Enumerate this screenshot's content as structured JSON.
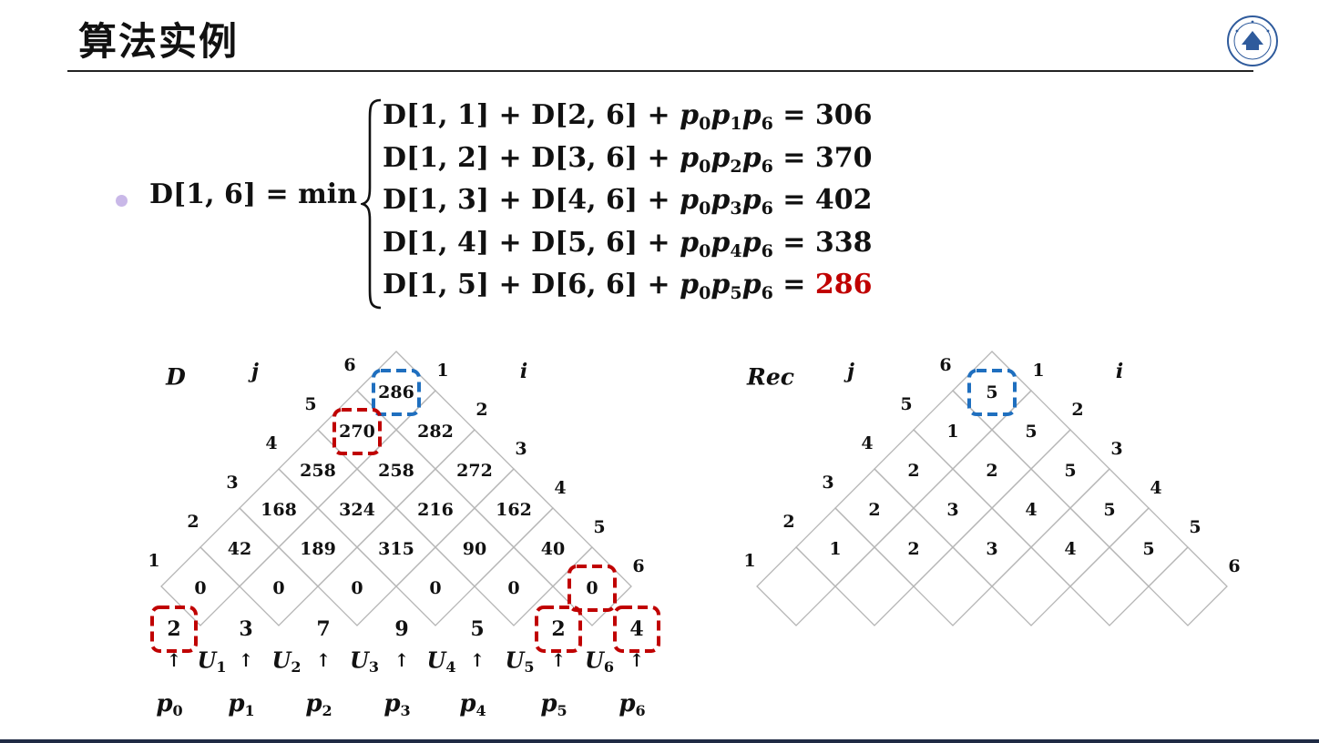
{
  "slide": {
    "title": "算法实例"
  },
  "formula": {
    "lhs": "D[1, 6] = min",
    "cases": [
      {
        "left": "D[1, 1] + D[2, 6] + ",
        "k": "1",
        "value": "306",
        "highlight": false
      },
      {
        "left": "D[1, 2] + D[3, 6] + ",
        "k": "2",
        "value": "370",
        "highlight": false
      },
      {
        "left": "D[1, 3] + D[4, 6] + ",
        "k": "3",
        "value": "402",
        "highlight": false
      },
      {
        "left": "D[1, 4] + D[5, 6] + ",
        "k": "4",
        "value": "338",
        "highlight": false
      },
      {
        "left": "D[1, 5] + D[6, 6] + ",
        "k": "5",
        "value": "286",
        "highlight": true
      }
    ]
  },
  "colors": {
    "red_dashed": "#c00000",
    "blue_dashed": "#1f6fbf",
    "grid_line": "#b5b5b5",
    "bullet": "#c9b8e8"
  },
  "d_table": {
    "label": "D",
    "j_label": "j",
    "i_label": "i",
    "left_indices": [
      "1",
      "2",
      "3",
      "4",
      "5",
      "6"
    ],
    "right_indices": [
      "1",
      "2",
      "3",
      "4",
      "5",
      "6"
    ],
    "rows": [
      [
        "0",
        "0",
        "0",
        "0",
        "0",
        "0"
      ],
      [
        "42",
        "189",
        "315",
        "90",
        "40"
      ],
      [
        "168",
        "324",
        "216",
        "162"
      ],
      [
        "258",
        "258",
        "272"
      ],
      [
        "270",
        "282"
      ],
      [
        "286"
      ]
    ],
    "dims": [
      "2",
      "3",
      "7",
      "9",
      "5",
      "2",
      "4"
    ],
    "u_labels": [
      "U",
      "U",
      "U",
      "U",
      "U",
      "U"
    ],
    "p_labels": [
      "p",
      "p",
      "p",
      "p",
      "p",
      "p",
      "p"
    ],
    "arrow": "↑",
    "blue_box": {
      "row": 5,
      "col": 0
    },
    "red_boxes": [
      {
        "row": 4,
        "col": 0
      },
      {
        "row": 0,
        "col": 5
      }
    ],
    "red_dim_boxes": [
      0,
      5,
      6
    ]
  },
  "rec_table": {
    "label": "Rec",
    "j_label": "j",
    "i_label": "i",
    "left_indices": [
      "1",
      "2",
      "3",
      "4",
      "5",
      "6"
    ],
    "right_indices": [
      "1",
      "2",
      "3",
      "4",
      "5",
      "6"
    ],
    "rows": [
      [
        "",
        "",
        "",
        "",
        "",
        ""
      ],
      [
        "1",
        "2",
        "3",
        "4",
        "5"
      ],
      [
        "2",
        "3",
        "4",
        "5"
      ],
      [
        "2",
        "2",
        "5"
      ],
      [
        "1",
        "5"
      ],
      [
        "5"
      ]
    ],
    "blue_box": {
      "row": 5,
      "col": 0
    }
  }
}
